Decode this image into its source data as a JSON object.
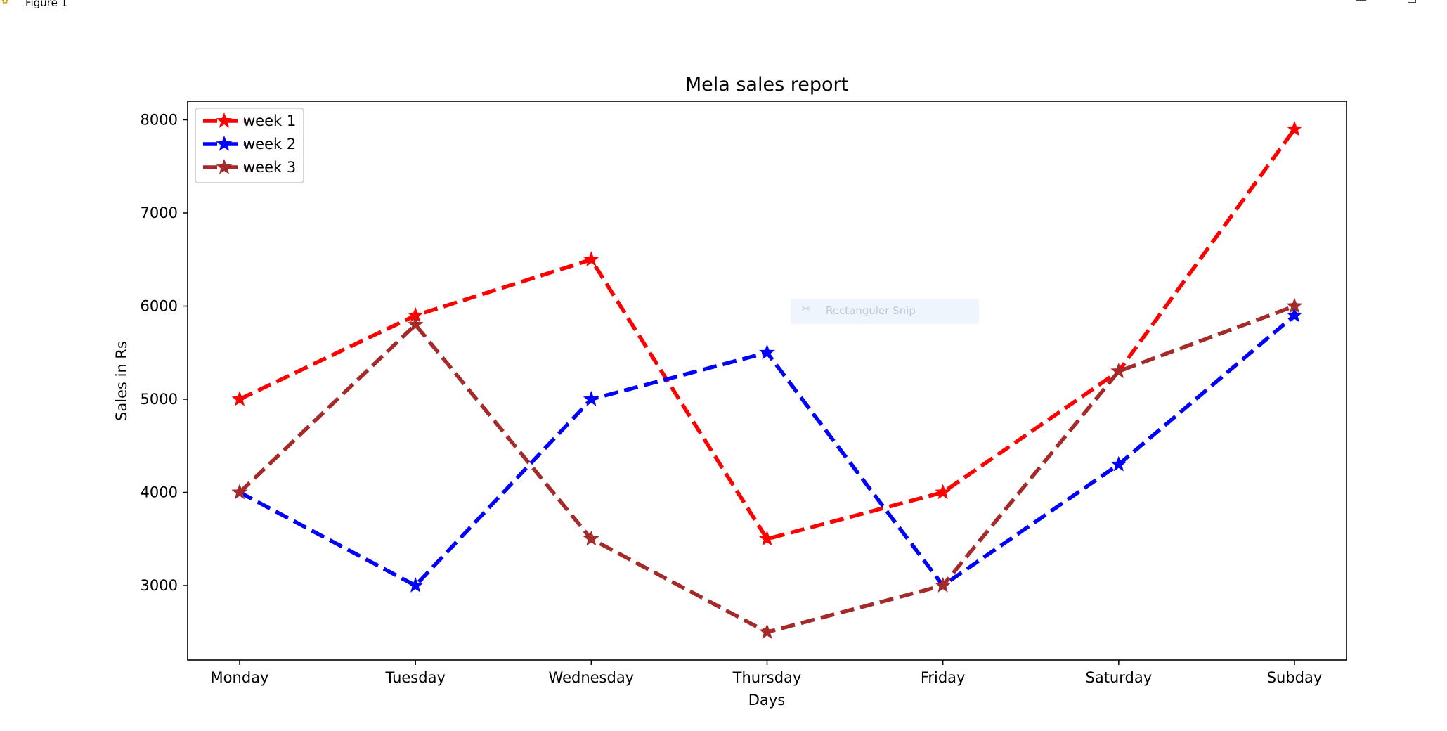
{
  "window": {
    "title": "Figure 1",
    "app_icon": "matplotlib-figure-icon",
    "controls": [
      "minimize-icon",
      "restore-icon"
    ]
  },
  "overlay": {
    "label": "Rectanguler Snip",
    "icon": "snip-icon"
  },
  "chart_data": {
    "type": "line",
    "title": "Mela sales report",
    "xlabel": "Days",
    "ylabel": "Sales in Rs",
    "categories": [
      "Monday",
      "Tuesday",
      "Wednesday",
      "Thursday",
      "Friday",
      "Saturday",
      "Subday"
    ],
    "ylim": [
      2200,
      8200
    ],
    "yticks": [
      3000,
      4000,
      5000,
      6000,
      7000,
      8000
    ],
    "ytick_labels": [
      "3000",
      "4000",
      "5000",
      "6000",
      "7000",
      "8000"
    ],
    "grid": false,
    "legend": "upper-left",
    "line_style": "dashed",
    "marker": "star",
    "series": [
      {
        "name": "week 1",
        "color": "#ff0000",
        "values": [
          5000,
          5900,
          6500,
          3500,
          4000,
          5300,
          7900
        ]
      },
      {
        "name": "week 2",
        "color": "#0000ff",
        "values": [
          4000,
          3000,
          5000,
          5500,
          3000,
          4300,
          5900
        ]
      },
      {
        "name": "week 3",
        "color": "#a52a2a",
        "values": [
          4000,
          5800,
          3500,
          2500,
          3000,
          5300,
          6000
        ]
      }
    ]
  }
}
